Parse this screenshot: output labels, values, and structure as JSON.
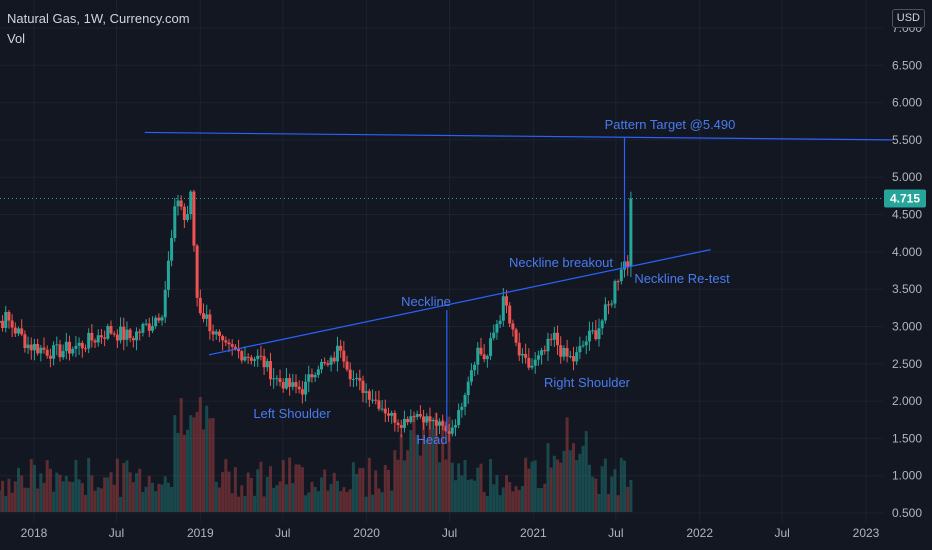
{
  "header": {
    "title": "Natural Gas, 1W, Currency.com",
    "indicator": "Vol"
  },
  "currency_label": "USD",
  "colors": {
    "background": "#131722",
    "grid": "#1e222d",
    "text": "#b2b5be",
    "up_candle": "#26a69a",
    "down_candle": "#ef5350",
    "annotation": "#2962ff",
    "annotation_text": "#4a7bf0",
    "last_price_bg": "#26a69a"
  },
  "chart_data": {
    "type": "candlestick",
    "title": "Natural Gas, 1W, Currency.com",
    "y_axis": {
      "ticks": [
        "7.000",
        "6.500",
        "6.000",
        "5.500",
        "5.000",
        "4.500",
        "4.000",
        "3.500",
        "3.000",
        "2.500",
        "2.000",
        "1.500",
        "1.000",
        "0.500"
      ],
      "tick_values": [
        7.0,
        6.5,
        6.0,
        5.5,
        5.0,
        4.5,
        4.0,
        3.5,
        3.0,
        2.5,
        2.0,
        1.5,
        1.0,
        0.5
      ],
      "ylim": [
        0.4,
        7.1
      ]
    },
    "x_axis": {
      "ticks": [
        "2018",
        "Jul",
        "2019",
        "Jul",
        "2020",
        "Jul",
        "2021",
        "Jul",
        "2022",
        "Jul",
        "2023"
      ],
      "tick_dates": [
        "2018-01-01",
        "2018-07-01",
        "2019-01-01",
        "2019-07-01",
        "2020-01-01",
        "2020-07-01",
        "2021-01-01",
        "2021-07-01",
        "2022-01-01",
        "2022-07-01",
        "2023-01-01"
      ],
      "range": [
        "2017-09-01",
        "2023-03-01"
      ]
    },
    "last_price": {
      "value": 4.715,
      "label": "4.715"
    },
    "price_anchors": [
      [
        "2017-09-05",
        3.0
      ],
      [
        "2017-11-01",
        3.1
      ],
      [
        "2017-12-20",
        2.75
      ],
      [
        "2018-02-15",
        2.65
      ],
      [
        "2018-04-15",
        2.75
      ],
      [
        "2018-06-15",
        2.95
      ],
      [
        "2018-08-01",
        2.85
      ],
      [
        "2018-09-15",
        3.05
      ],
      [
        "2018-10-10",
        3.25
      ],
      [
        "2018-11-14",
        4.8
      ],
      [
        "2018-11-28",
        4.4
      ],
      [
        "2018-12-12",
        4.7
      ],
      [
        "2018-12-26",
        3.3
      ],
      [
        "2019-01-20",
        3.05
      ],
      [
        "2019-02-20",
        2.7
      ],
      [
        "2019-04-01",
        2.65
      ],
      [
        "2019-05-15",
        2.55
      ],
      [
        "2019-06-15",
        2.3
      ],
      [
        "2019-07-15",
        2.2
      ],
      [
        "2019-08-15",
        2.15
      ],
      [
        "2019-09-15",
        2.5
      ],
      [
        "2019-10-10",
        2.45
      ],
      [
        "2019-11-05",
        2.75
      ],
      [
        "2019-12-01",
        2.3
      ],
      [
        "2020-01-15",
        2.05
      ],
      [
        "2020-02-15",
        1.85
      ],
      [
        "2020-03-15",
        1.7
      ],
      [
        "2020-04-15",
        1.85
      ],
      [
        "2020-05-15",
        1.75
      ],
      [
        "2020-06-15",
        1.65
      ],
      [
        "2020-06-26",
        1.55
      ],
      [
        "2020-07-20",
        1.8
      ],
      [
        "2020-08-10",
        2.3
      ],
      [
        "2020-08-31",
        2.7
      ],
      [
        "2020-09-20",
        2.55
      ],
      [
        "2020-10-10",
        3.0
      ],
      [
        "2020-10-30",
        3.35
      ],
      [
        "2020-11-15",
        2.9
      ],
      [
        "2020-12-05",
        2.55
      ],
      [
        "2020-12-25",
        2.45
      ],
      [
        "2021-01-20",
        2.6
      ],
      [
        "2021-02-15",
        2.85
      ],
      [
        "2021-03-10",
        2.6
      ],
      [
        "2021-04-01",
        2.55
      ],
      [
        "2021-04-25",
        2.8
      ],
      [
        "2021-05-20",
        2.95
      ],
      [
        "2021-06-15",
        3.25
      ],
      [
        "2021-07-01",
        3.6
      ],
      [
        "2021-07-15",
        3.9
      ],
      [
        "2021-07-26",
        3.82
      ],
      [
        "2021-08-02",
        4.1
      ],
      [
        "2021-08-09",
        4.715
      ]
    ],
    "volume": {
      "max_height_fraction": 0.25
    },
    "annotations": {
      "pattern_target": {
        "label": "Pattern Target @5.490",
        "value": 5.49
      },
      "neckline": {
        "label": "Neckline"
      },
      "neckline_breakout": {
        "label": "Neckline breakout"
      },
      "neckline_retest": {
        "label": "Neckline Re-test"
      },
      "left_shoulder": {
        "label": "Left Shoulder"
      },
      "head": {
        "label": "Head"
      },
      "right_shoulder": {
        "label": "Right Shoulder"
      }
    },
    "lines": {
      "target_line": [
        [
          "2018-09-01",
          5.6
        ],
        [
          "2023-03-01",
          5.5
        ]
      ],
      "neckline": [
        [
          "2019-01-20",
          2.62
        ],
        [
          "2022-01-25",
          4.03
        ]
      ],
      "head_drop": [
        [
          "2020-06-25",
          3.22
        ],
        [
          "2020-06-25",
          1.6
        ]
      ],
      "target_projection": [
        [
          "2021-07-20",
          5.53
        ],
        [
          "2021-07-20",
          3.78
        ]
      ]
    }
  }
}
